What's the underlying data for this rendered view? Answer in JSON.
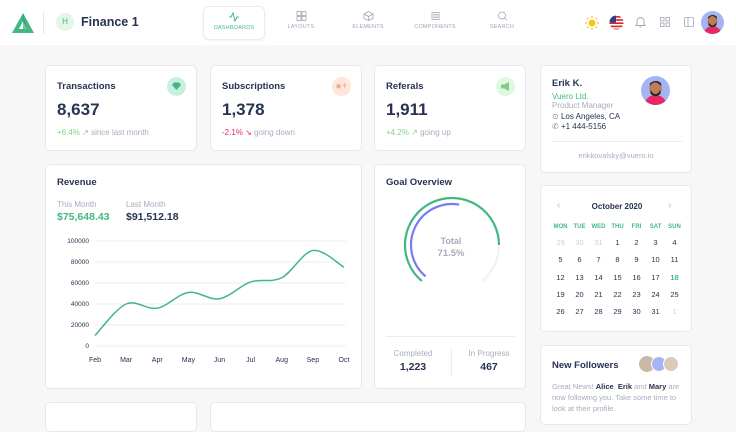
{
  "header": {
    "app_initial": "H",
    "title": "Finance 1",
    "nav": [
      {
        "label": "DASHBOARDS",
        "icon": "activity-icon",
        "active": true
      },
      {
        "label": "LAYOUTS",
        "icon": "grid-icon"
      },
      {
        "label": "ELEMENTS",
        "icon": "box-icon"
      },
      {
        "label": "COMPONENTS",
        "icon": "cpu-icon"
      },
      {
        "label": "SEARCH",
        "icon": "search-icon"
      }
    ]
  },
  "stats": [
    {
      "title": "Transactions",
      "value": "8,637",
      "change": "+6.4%",
      "note": "since last month",
      "trend": "up",
      "icon": "diamond-icon",
      "color": "#41b883"
    },
    {
      "title": "Subscriptions",
      "value": "1,378",
      "change": "-2.1%",
      "note": "going down",
      "trend": "down",
      "icon": "user-plus-icon",
      "color": "#f8a488"
    },
    {
      "title": "Referals",
      "value": "1,911",
      "change": "+4.2%",
      "note": "going up",
      "trend": "up",
      "icon": "megaphone-icon",
      "color": "#7ed17e"
    }
  ],
  "profile": {
    "name": "Erik K.",
    "company": "Vuero Ltd.",
    "role": "Product Manager",
    "location": "Los Angeles, CA",
    "phone": "+1 444-5156",
    "email": "erikkovalsky@vuero.io"
  },
  "revenue": {
    "title": "Revenue",
    "this_label": "This Month",
    "this_value": "$75,648.43",
    "last_label": "Last Month",
    "last_value": "$91,512.18"
  },
  "chart_data": {
    "type": "line",
    "categories": [
      "Feb",
      "Mar",
      "Apr",
      "May",
      "Jun",
      "Jul",
      "Aug",
      "Sep",
      "Oct"
    ],
    "values": [
      10000,
      40000,
      36000,
      51000,
      45000,
      61000,
      65000,
      91000,
      75000
    ],
    "yticks": [
      0,
      20000,
      40000,
      60000,
      80000,
      100000
    ],
    "ylim": [
      0,
      100000
    ],
    "grid": true,
    "color": "#41b883"
  },
  "goal": {
    "title": "Goal Overview",
    "total_label": "Total",
    "total_value": "71.5%",
    "completed_label": "Completed",
    "completed": "1,223",
    "progress_label": "In Progress",
    "in_progress": "467"
  },
  "calendar": {
    "month": "October 2020",
    "days": [
      "MON",
      "TUE",
      "WED",
      "THU",
      "FRI",
      "SAT",
      "SUN"
    ],
    "weeks": [
      [
        "29",
        "30",
        "31",
        "1",
        "2",
        "3",
        "4"
      ],
      [
        "5",
        "6",
        "7",
        "8",
        "9",
        "10",
        "11"
      ],
      [
        "12",
        "13",
        "14",
        "15",
        "16",
        "17",
        "18"
      ],
      [
        "19",
        "20",
        "21",
        "22",
        "23",
        "24",
        "25"
      ],
      [
        "26",
        "27",
        "28",
        "29",
        "30",
        "31",
        "1"
      ]
    ],
    "today": "18"
  },
  "followers": {
    "title": "New Followers",
    "t1": "Great News! ",
    "n1": "Alice",
    "t2": ", ",
    "n2": "Erik",
    "t3": " and ",
    "n3": "Mary",
    "t4": " are now following you. Take some time to look at their profile."
  }
}
